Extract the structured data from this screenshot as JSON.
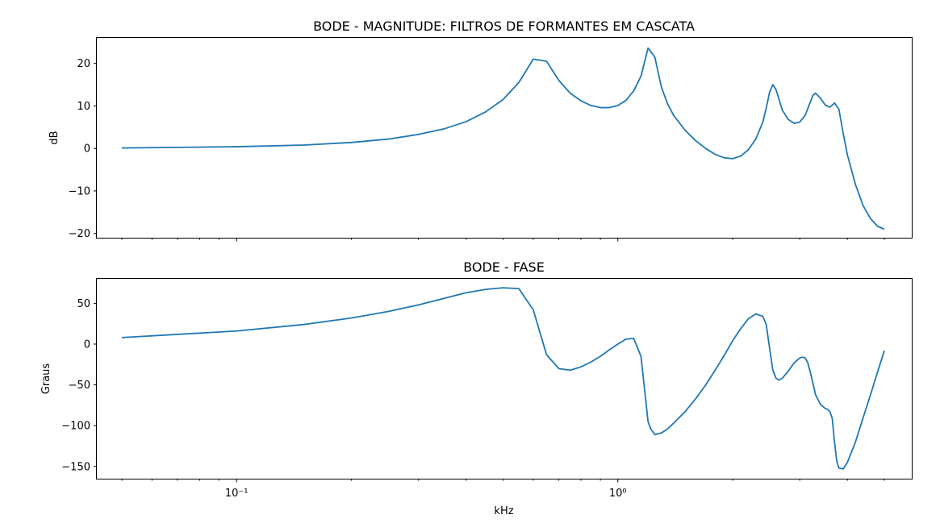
{
  "chart_data": [
    {
      "type": "line",
      "title": "BODE - MAGNITUDE: FILTROS DE FORMANTES EM CASCATA",
      "xlabel": "",
      "ylabel": "dB",
      "xscale": "log",
      "xlim": [
        0.043,
        5.9
      ],
      "ylim": [
        -21,
        26
      ],
      "yticks": [
        -20,
        -10,
        0,
        10,
        20
      ],
      "xticks_major": [
        {
          "value": 0.1,
          "label": "10⁻¹"
        },
        {
          "value": 1,
          "label": "10⁰"
        }
      ],
      "grid": false,
      "series": [
        {
          "color": "#1f77b4",
          "x": [
            0.05,
            0.1,
            0.15,
            0.2,
            0.25,
            0.3,
            0.35,
            0.4,
            0.45,
            0.5,
            0.55,
            0.6,
            0.65,
            0.7,
            0.75,
            0.8,
            0.85,
            0.9,
            0.95,
            1.0,
            1.05,
            1.1,
            1.15,
            1.2,
            1.25,
            1.3,
            1.35,
            1.4,
            1.5,
            1.6,
            1.7,
            1.8,
            1.9,
            2.0,
            2.1,
            2.2,
            2.3,
            2.4,
            2.45,
            2.5,
            2.55,
            2.6,
            2.7,
            2.8,
            2.9,
            3.0,
            3.1,
            3.2,
            3.25,
            3.3,
            3.4,
            3.5,
            3.6,
            3.65,
            3.7,
            3.8,
            3.9,
            4.0,
            4.2,
            4.4,
            4.6,
            4.8,
            5.0
          ],
          "y": [
            0.1,
            0.4,
            0.8,
            1.4,
            2.2,
            3.3,
            4.6,
            6.3,
            8.6,
            11.5,
            15.5,
            21.0,
            20.5,
            16.0,
            13.0,
            11.2,
            10.1,
            9.6,
            9.6,
            10.1,
            11.3,
            13.5,
            17.0,
            23.6,
            21.5,
            14.5,
            10.5,
            7.8,
            4.3,
            1.8,
            0.0,
            -1.4,
            -2.2,
            -2.4,
            -1.8,
            -0.3,
            2.2,
            6.2,
            9.5,
            13.2,
            15.0,
            13.8,
            9.0,
            6.8,
            5.9,
            6.2,
            7.8,
            11.0,
            12.5,
            13.0,
            11.8,
            10.2,
            9.7,
            10.2,
            10.7,
            9.2,
            3.5,
            -1.5,
            -8.5,
            -13.5,
            -16.5,
            -18.3,
            -19.0
          ]
        }
      ]
    },
    {
      "type": "line",
      "title": "BODE - FASE",
      "xlabel": "kHz",
      "ylabel": "Graus",
      "xscale": "log",
      "xlim": [
        0.043,
        5.9
      ],
      "ylim": [
        -165,
        80
      ],
      "yticks": [
        -150,
        -100,
        -50,
        0,
        50
      ],
      "xticks_major": [
        {
          "value": 0.1,
          "label": "10⁻¹"
        },
        {
          "value": 1,
          "label": "10⁰"
        }
      ],
      "grid": false,
      "series": [
        {
          "color": "#1f77b4",
          "x": [
            0.05,
            0.1,
            0.15,
            0.2,
            0.25,
            0.3,
            0.35,
            0.4,
            0.45,
            0.5,
            0.55,
            0.6,
            0.65,
            0.7,
            0.75,
            0.8,
            0.85,
            0.9,
            0.95,
            1.0,
            1.05,
            1.1,
            1.15,
            1.2,
            1.22,
            1.25,
            1.3,
            1.35,
            1.4,
            1.5,
            1.6,
            1.7,
            1.8,
            1.9,
            2.0,
            2.1,
            2.2,
            2.3,
            2.4,
            2.45,
            2.5,
            2.55,
            2.6,
            2.65,
            2.7,
            2.8,
            2.9,
            3.0,
            3.05,
            3.1,
            3.15,
            3.2,
            3.3,
            3.4,
            3.5,
            3.55,
            3.6,
            3.65,
            3.7,
            3.75,
            3.8,
            3.9,
            4.0,
            4.2,
            4.4,
            4.6,
            4.8,
            5.0
          ],
          "y": [
            8,
            16,
            24,
            32,
            40,
            48,
            56,
            63,
            67,
            69,
            68,
            42,
            -13,
            -30,
            -32,
            -28,
            -22,
            -15,
            -7,
            0,
            6,
            7,
            -15,
            -95,
            -104,
            -111,
            -109,
            -104,
            -97,
            -83,
            -67,
            -50,
            -32,
            -14,
            4,
            19,
            31,
            37,
            34,
            24,
            -5,
            -32,
            -42,
            -44,
            -42,
            -33,
            -23,
            -17,
            -16,
            -17,
            -23,
            -35,
            -62,
            -74,
            -79,
            -80,
            -83,
            -91,
            -120,
            -143,
            -152,
            -153,
            -145,
            -120,
            -90,
            -62,
            -34,
            -8
          ]
        }
      ]
    }
  ]
}
